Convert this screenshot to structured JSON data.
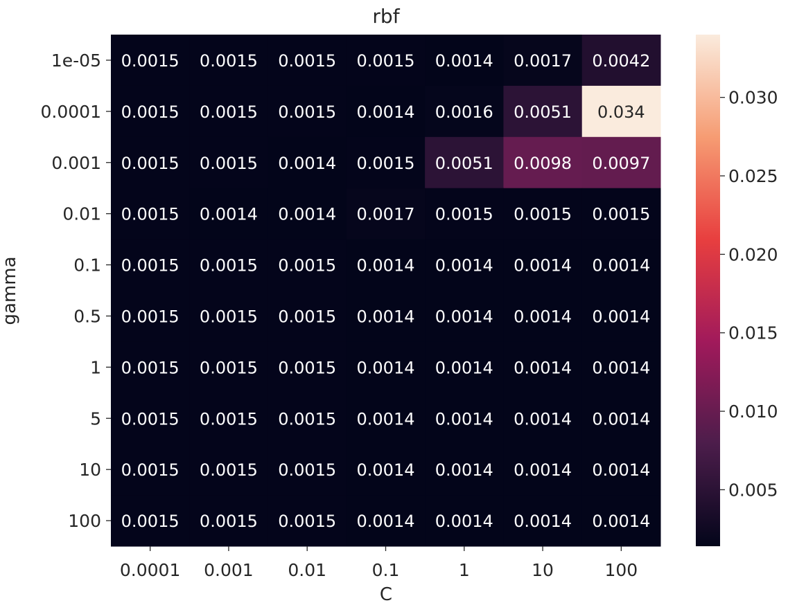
{
  "chart_data": {
    "type": "heatmap",
    "title": "rbf",
    "xlabel": "C",
    "ylabel": "gamma",
    "x_categories": [
      "0.0001",
      "0.001",
      "0.01",
      "0.1",
      "1",
      "10",
      "100"
    ],
    "y_categories": [
      "1e-05",
      "0.0001",
      "0.001",
      "0.01",
      "0.1",
      "0.5",
      "1",
      "5",
      "10",
      "100"
    ],
    "values": [
      [
        0.0015,
        0.0015,
        0.0015,
        0.0015,
        0.0014,
        0.0017,
        0.0042
      ],
      [
        0.0015,
        0.0015,
        0.0015,
        0.0014,
        0.0016,
        0.0051,
        0.034
      ],
      [
        0.0015,
        0.0015,
        0.0014,
        0.0015,
        0.0051,
        0.0098,
        0.0097
      ],
      [
        0.0015,
        0.0014,
        0.0014,
        0.0017,
        0.0015,
        0.0015,
        0.0015
      ],
      [
        0.0015,
        0.0015,
        0.0015,
        0.0014,
        0.0014,
        0.0014,
        0.0014
      ],
      [
        0.0015,
        0.0015,
        0.0015,
        0.0014,
        0.0014,
        0.0014,
        0.0014
      ],
      [
        0.0015,
        0.0015,
        0.0015,
        0.0014,
        0.0014,
        0.0014,
        0.0014
      ],
      [
        0.0015,
        0.0015,
        0.0015,
        0.0014,
        0.0014,
        0.0014,
        0.0014
      ],
      [
        0.0015,
        0.0015,
        0.0015,
        0.0014,
        0.0014,
        0.0014,
        0.0014
      ],
      [
        0.0015,
        0.0015,
        0.0015,
        0.0014,
        0.0014,
        0.0014,
        0.0014
      ]
    ],
    "colorbar": {
      "min": 0.0014,
      "max": 0.034,
      "ticks": [
        0.005,
        0.01,
        0.015,
        0.02,
        0.025,
        0.03
      ],
      "tick_labels": [
        "0.005",
        "0.010",
        "0.015",
        "0.020",
        "0.025",
        "0.030"
      ]
    },
    "colormap": [
      "#03051a",
      "#4c1d4b",
      "#a11a5b",
      "#e83f3f",
      "#f69c73",
      "#faebdd"
    ],
    "annotation_colors": {
      "light": "#ffffff",
      "dark": "#262626"
    }
  }
}
